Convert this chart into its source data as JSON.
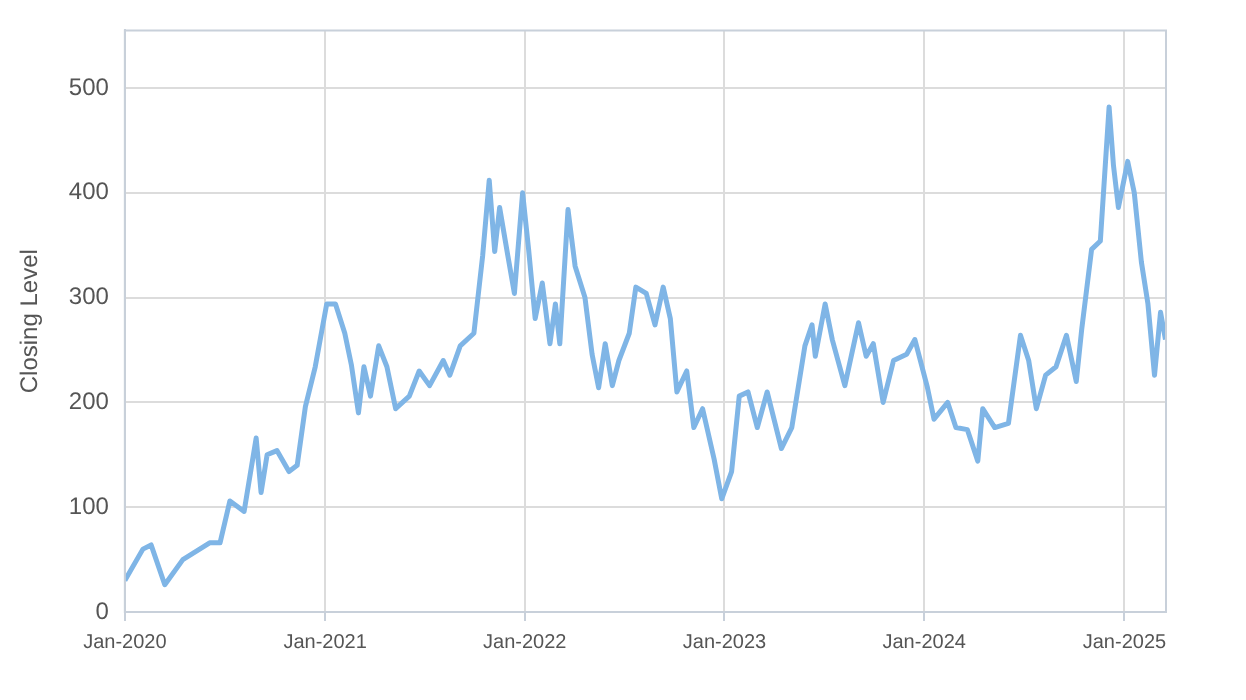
{
  "chart_data": {
    "type": "line",
    "ylabel": "Closing Level",
    "x": [
      "2020-01-01",
      "2020-02-03",
      "2020-02-18",
      "2020-03-14",
      "2020-04-16",
      "2020-06-04",
      "2020-06-23",
      "2020-07-11",
      "2020-08-06",
      "2020-08-28",
      "2020-09-06",
      "2020-09-17",
      "2020-10-05",
      "2020-10-27",
      "2020-11-11",
      "2020-11-26",
      "2020-12-14",
      "2021-01-04",
      "2021-01-20",
      "2021-02-06",
      "2021-02-18",
      "2021-03-03",
      "2021-03-13",
      "2021-03-25",
      "2021-04-09",
      "2021-04-24",
      "2021-05-10",
      "2021-06-04",
      "2021-06-22",
      "2021-07-11",
      "2021-08-05",
      "2021-08-17",
      "2021-09-05",
      "2021-09-30",
      "2021-10-16",
      "2021-10-28",
      "2021-11-07",
      "2021-11-16",
      "2021-12-01",
      "2021-12-13",
      "2021-12-28",
      "2022-01-08",
      "2022-01-20",
      "2022-02-02",
      "2022-02-16",
      "2022-02-26",
      "2022-03-06",
      "2022-03-21",
      "2022-04-03",
      "2022-04-21",
      "2022-05-04",
      "2022-05-16",
      "2022-05-28",
      "2022-06-10",
      "2022-06-22",
      "2022-07-11",
      "2022-07-23",
      "2022-08-11",
      "2022-08-27",
      "2022-09-11",
      "2022-09-24",
      "2022-10-06",
      "2022-10-24",
      "2022-11-06",
      "2022-11-22",
      "2022-12-13",
      "2022-12-27",
      "2023-01-14",
      "2023-01-28",
      "2023-02-13",
      "2023-03-02",
      "2023-03-20",
      "2023-04-15",
      "2023-05-04",
      "2023-05-28",
      "2023-06-10",
      "2023-06-16",
      "2023-07-04",
      "2023-07-17",
      "2023-08-09",
      "2023-09-03",
      "2023-09-17",
      "2023-09-30",
      "2023-10-18",
      "2023-11-06",
      "2023-11-30",
      "2023-12-15",
      "2024-01-07",
      "2024-01-19",
      "2024-02-13",
      "2024-02-28",
      "2024-03-20",
      "2024-04-08",
      "2024-04-17",
      "2024-05-09",
      "2024-06-03",
      "2024-06-25",
      "2024-07-10",
      "2024-07-24",
      "2024-08-10",
      "2024-08-29",
      "2024-09-17",
      "2024-10-05",
      "2024-10-15",
      "2024-11-02",
      "2024-11-18",
      "2024-12-04",
      "2024-12-12",
      "2024-12-21",
      "2025-01-07",
      "2025-01-19",
      "2025-02-01",
      "2025-02-13",
      "2025-02-25",
      "2025-03-08",
      "2025-03-17"
    ],
    "series": [
      {
        "color": "#7fb5e6",
        "values": [
          30,
          60,
          64,
          26,
          50,
          66,
          66,
          106,
          96,
          166,
          114,
          150,
          154,
          134,
          140,
          196,
          234,
          294,
          294,
          266,
          236,
          190,
          234,
          206,
          254,
          234,
          194,
          206,
          230,
          216,
          240,
          226,
          254,
          266,
          340,
          412,
          344,
          386,
          340,
          304,
          400,
          346,
          280,
          314,
          256,
          294,
          256,
          384,
          330,
          300,
          246,
          214,
          256,
          216,
          240,
          266,
          310,
          304,
          274,
          310,
          280,
          210,
          230,
          176,
          194,
          146,
          108,
          134,
          206,
          210,
          176,
          210,
          156,
          176,
          254,
          274,
          244,
          294,
          260,
          216,
          276,
          244,
          256,
          200,
          240,
          246,
          260,
          214,
          184,
          200,
          176,
          174,
          144,
          194,
          176,
          180,
          264,
          240,
          194,
          226,
          234,
          264,
          220,
          270,
          346,
          354,
          482,
          426,
          386,
          430,
          400,
          334,
          294,
          226,
          286,
          260
        ]
      }
    ],
    "xlim": [
      "2020-01-01",
      "2025-03-18"
    ],
    "xticks": [
      {
        "value": "2020-01-01",
        "label": "Jan-2020"
      },
      {
        "value": "2021-01-01",
        "label": "Jan-2021"
      },
      {
        "value": "2022-01-01",
        "label": "Jan-2022"
      },
      {
        "value": "2023-01-01",
        "label": "Jan-2023"
      },
      {
        "value": "2024-01-01",
        "label": "Jan-2024"
      },
      {
        "value": "2025-01-01",
        "label": "Jan-2025"
      }
    ],
    "ylim": [
      0,
      555
    ],
    "yticks": [
      0,
      100,
      200,
      300,
      400,
      500
    ],
    "grid": true,
    "marker": "none",
    "line_style": "solid"
  }
}
